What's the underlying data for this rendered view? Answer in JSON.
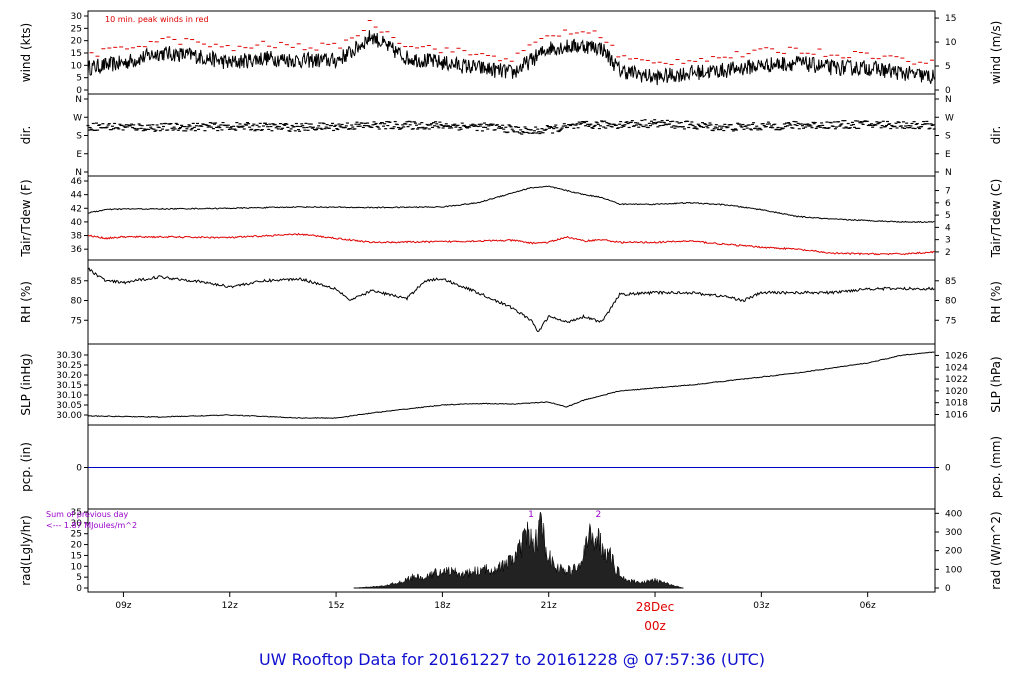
{
  "title": "UW Rooftop Data for 20161227  to  20161228 @ 07:57:36  (UTC)",
  "colors": {
    "temp": "#000000",
    "dew": "#e00000",
    "precip": "#0000c8",
    "title": "#1010d0",
    "annotation": "#9900cc",
    "peak": "#e00000",
    "date": "#e00000"
  },
  "time_axis": {
    "hours_shown": [
      "09z",
      "12z",
      "15z",
      "18z",
      "21z",
      "00z",
      "03z",
      "06z"
    ],
    "date_label": "28Dec",
    "date_hour_label": "00z"
  },
  "chart_data": [
    {
      "type": "line",
      "name": "wind",
      "ylabel": "wind (kts)",
      "ylabel_right": "wind (m/s)",
      "ylim": [
        0,
        30
      ],
      "yticks": [
        "0",
        "5",
        "10",
        "15",
        "20",
        "25",
        "30"
      ],
      "yticks_right": [
        "0",
        "5",
        "10",
        "15"
      ],
      "annotation": "10 min. peak winds in red",
      "x_hours": [
        8,
        9,
        10,
        11,
        12,
        13,
        14,
        15,
        15.5,
        16,
        16.5,
        17,
        18,
        19,
        19.5,
        20,
        21,
        22,
        22.5,
        23,
        24,
        25,
        26,
        27,
        28,
        29,
        30,
        31.9
      ],
      "values": [
        9,
        11,
        15,
        14,
        11,
        13,
        12,
        12,
        16,
        22,
        17,
        13,
        11,
        9,
        8,
        7,
        17,
        18,
        17,
        8,
        5,
        7,
        8,
        10,
        11,
        9,
        9,
        5
      ]
    },
    {
      "type": "scatter",
      "name": "direction",
      "ylabel": "dir.",
      "ylabel_right": "dir.",
      "yticks": [
        "N",
        "E",
        "S",
        "W",
        "N"
      ],
      "ylim": [
        0,
        360
      ],
      "x_hours": [
        8,
        10,
        12,
        14,
        16,
        18,
        19.5,
        20.5,
        22,
        23,
        24,
        26,
        28,
        30,
        31.9
      ],
      "values": [
        225,
        220,
        225,
        220,
        230,
        230,
        220,
        200,
        230,
        235,
        240,
        220,
        230,
        235,
        230
      ]
    },
    {
      "type": "line",
      "ylabel": "Tair/Tdew (F)",
      "ylabel_right": "Tair/Tdew (C)",
      "ylim": [
        35,
        46
      ],
      "yticks": [
        "36",
        "38",
        "40",
        "42",
        "44",
        "46"
      ],
      "yticks_right": [
        "2",
        "3",
        "4",
        "5",
        "6",
        "7"
      ],
      "x_hours": [
        8,
        8.5,
        9,
        10,
        12,
        14,
        16,
        18,
        19,
        20,
        20.5,
        21,
        21.5,
        22,
        22.5,
        23,
        24,
        25,
        26,
        27,
        28,
        29,
        30,
        31,
        31.9
      ],
      "series": [
        {
          "values": [
            41.3,
            41.8,
            41.9,
            41.9,
            42.0,
            42.2,
            42.1,
            42.2,
            42.8,
            44.3,
            45.0,
            45.2,
            44.6,
            44.0,
            43.6,
            42.6,
            42.6,
            42.8,
            42.5,
            41.8,
            40.8,
            40.4,
            40.2,
            40.0,
            40.0
          ]
        },
        {
          "values": [
            38.0,
            37.6,
            37.8,
            37.8,
            37.7,
            38.2,
            37.0,
            37.1,
            37.2,
            37.3,
            36.9,
            37.0,
            37.8,
            37.2,
            37.4,
            37.0,
            37.0,
            37.2,
            36.7,
            36.3,
            36.0,
            35.4,
            35.3,
            35.3,
            35.6
          ]
        }
      ]
    },
    {
      "type": "line",
      "name": "humidity",
      "ylabel": "RH (%)",
      "ylabel_right": "RH (%)",
      "ylim": [
        70,
        89
      ],
      "yticks": [
        "75",
        "80",
        "85"
      ],
      "x_hours": [
        8,
        8.5,
        9,
        10,
        11,
        12,
        13,
        14,
        15,
        15.4,
        16,
        17,
        17.5,
        18,
        19,
        19.5,
        20,
        20.5,
        20.7,
        21,
        21.5,
        22,
        22.5,
        23,
        24,
        25,
        26,
        26.5,
        27,
        28,
        29,
        30,
        31,
        31.9
      ],
      "values": [
        88,
        85,
        84.5,
        86,
        85,
        83.5,
        85,
        85.5,
        83,
        80,
        82.5,
        80.5,
        85,
        85.5,
        82,
        80,
        78,
        75,
        72,
        76,
        74.5,
        76,
        74.5,
        81.5,
        82,
        82,
        81,
        80,
        82,
        82,
        82,
        83,
        83,
        83
      ]
    },
    {
      "type": "line",
      "name": "pressure",
      "ylabel": "SLP (inHg)",
      "ylabel_right": "SLP (hPa)",
      "ylim": [
        29.97,
        30.33
      ],
      "yticks": [
        "30.00",
        "30.05",
        "30.10",
        "30.15",
        "30.20",
        "30.25",
        "30.30"
      ],
      "yticks_right": [
        "1016",
        "1018",
        "1020",
        "1022",
        "1024",
        "1026"
      ],
      "x_hours": [
        8,
        10,
        12,
        14,
        15,
        16,
        17,
        18,
        19,
        20,
        21,
        21.5,
        22,
        23,
        24,
        25,
        26,
        27,
        28,
        29,
        30,
        31,
        31.9
      ],
      "values": [
        29.995,
        29.99,
        30.0,
        29.985,
        29.985,
        30.01,
        30.03,
        30.05,
        30.057,
        30.055,
        30.065,
        30.04,
        30.075,
        30.12,
        30.135,
        30.15,
        30.17,
        30.19,
        30.21,
        30.235,
        30.26,
        30.3,
        30.315
      ]
    },
    {
      "type": "line",
      "name": "precipitation",
      "ylabel": "pcp. (in)",
      "ylabel_right": "pcp. (mm)",
      "yticks": [
        "0"
      ],
      "yticks_right": [
        "0"
      ],
      "ylim": [
        -1,
        1
      ],
      "x_hours": [
        8,
        31.9
      ],
      "values": [
        0,
        0
      ]
    },
    {
      "type": "area",
      "name": "radiation",
      "ylabel": "rad(Lgly/hr)",
      "ylabel_right": "rad (W/m^2)",
      "ylim": [
        0,
        35
      ],
      "yticks": [
        "0",
        "5",
        "10",
        "15",
        "20",
        "25",
        "30",
        "35"
      ],
      "yticks_right": [
        "0",
        "100",
        "200",
        "300",
        "400"
      ],
      "annotation_lines": [
        "Sum of previous day",
        "<--- 1.87 MJoules/m^2"
      ],
      "markers": [
        {
          "label": "1",
          "x_hour": 20.5
        },
        {
          "label": "2",
          "x_hour": 22.4
        }
      ],
      "x_hours": [
        15.5,
        16.3,
        16.8,
        17.2,
        17.5,
        17.8,
        18.2,
        18.6,
        19,
        19.4,
        19.8,
        20.2,
        20.4,
        20.6,
        20.75,
        20.9,
        21.1,
        21.3,
        21.6,
        21.9,
        22.1,
        22.3,
        22.5,
        22.7,
        22.9,
        23.2,
        23.6,
        24,
        24.2,
        24.8
      ],
      "values": [
        0,
        1,
        3,
        6,
        5,
        8,
        9,
        7,
        9,
        10,
        12,
        20,
        28,
        22,
        33,
        24,
        13,
        10,
        9,
        12,
        25,
        28,
        22,
        18,
        10,
        4,
        3,
        4,
        3,
        0
      ]
    }
  ]
}
